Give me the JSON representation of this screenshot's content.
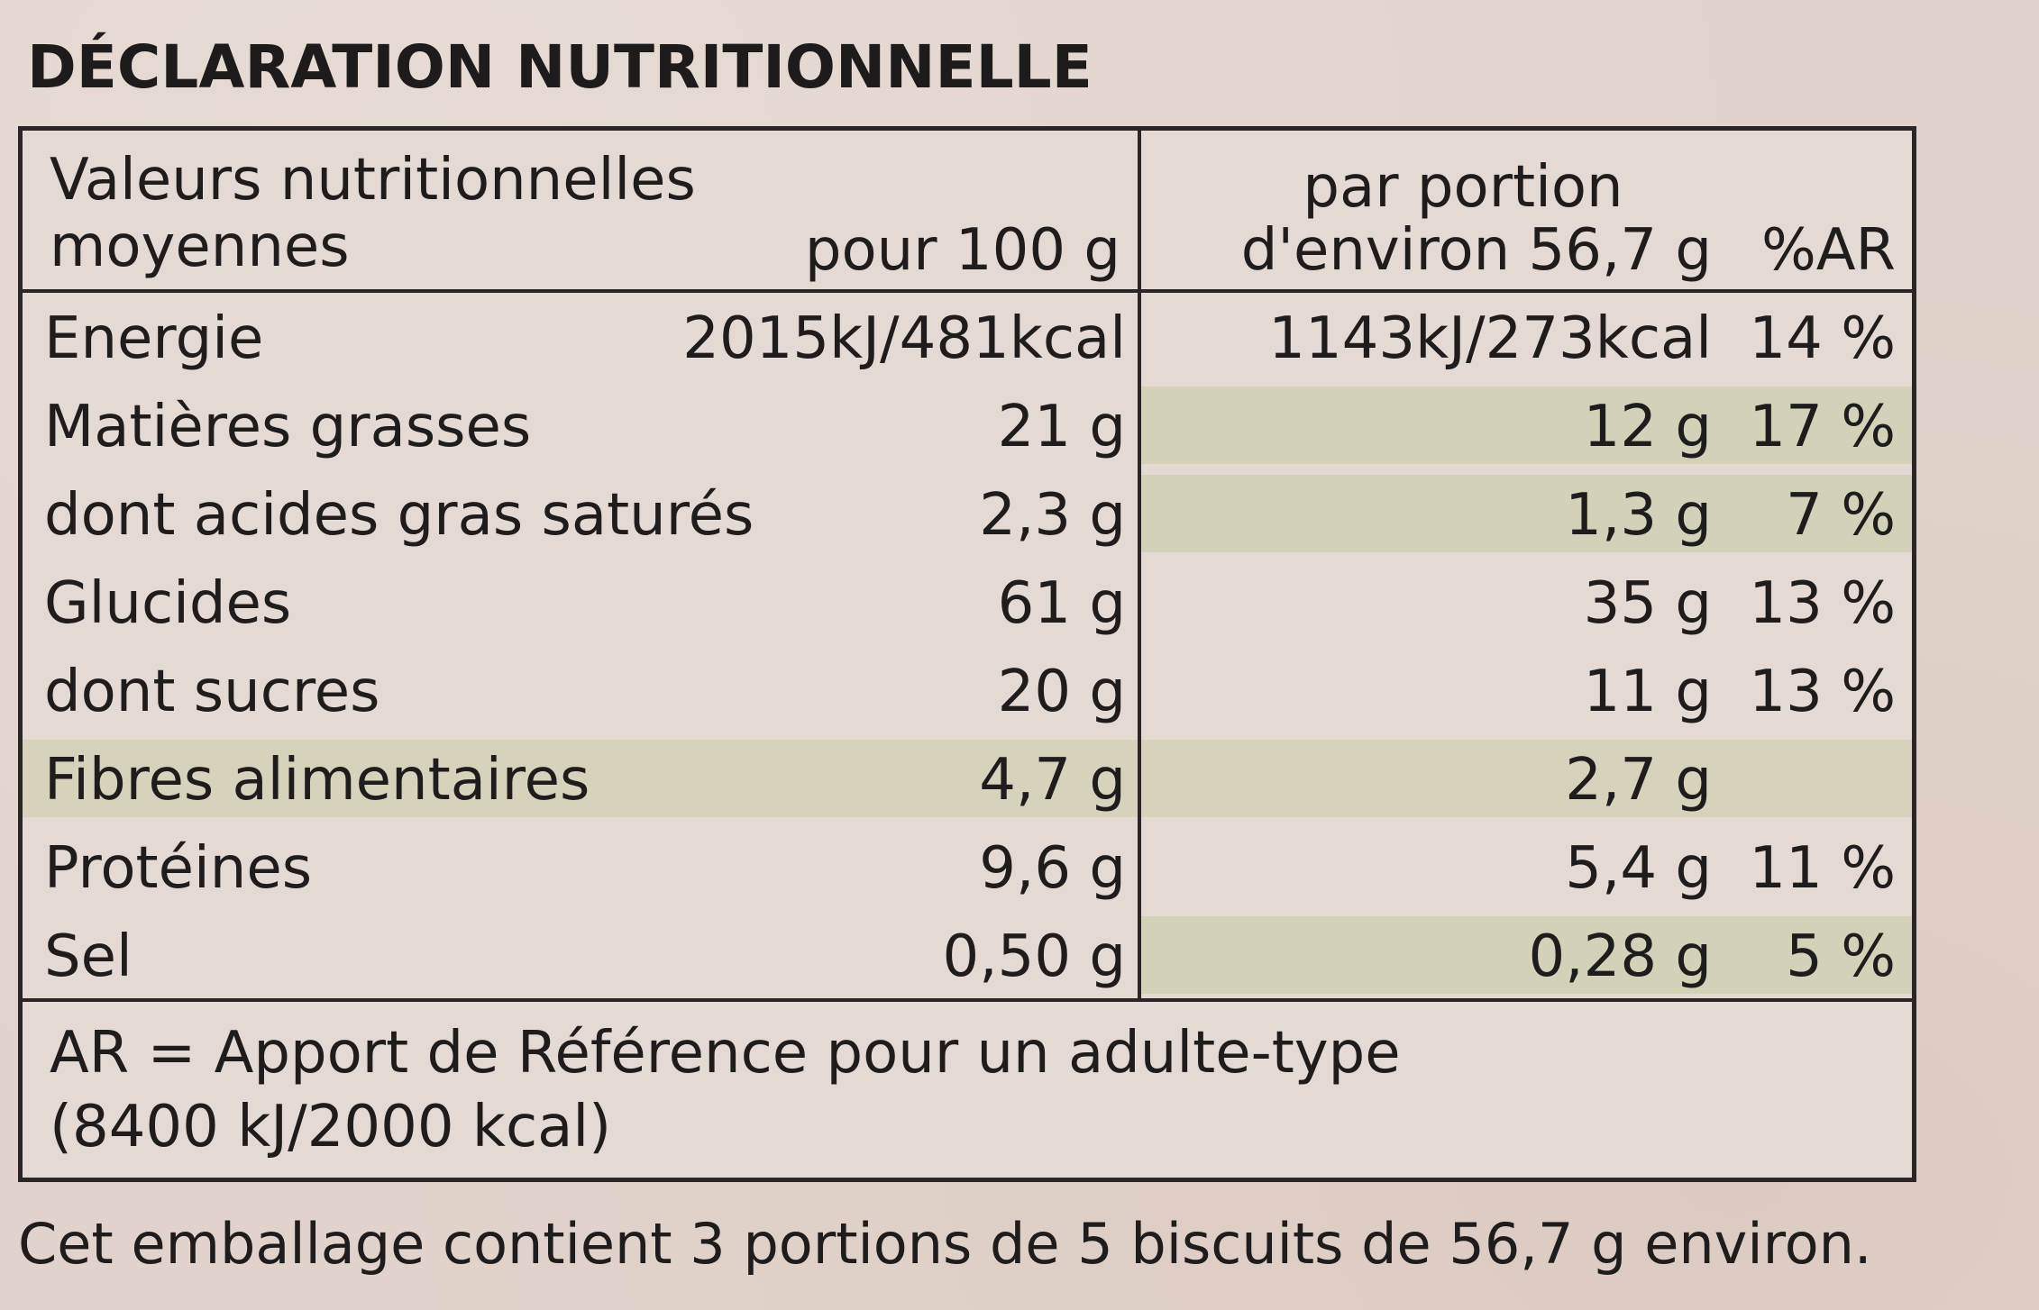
{
  "title": "DÉCLARATION NUTRITIONNELLE",
  "header": {
    "left_line1": "Valeurs nutritionnelles",
    "left_line2": "moyennes",
    "per100": "pour 100 g",
    "portion_line1": "par portion",
    "portion_line2": "d'environ 56,7 g",
    "ar": "%AR"
  },
  "rows": [
    {
      "nutrient": "Energie",
      "per100": "2015kJ/481kcal",
      "portion": "1143kJ/273kcal",
      "ar": "14 %",
      "tint": "none"
    },
    {
      "nutrient": "Matières grasses",
      "per100": "21 g",
      "portion": "12 g",
      "ar": "17 %",
      "tint": "right"
    },
    {
      "nutrient": "dont acides gras saturés",
      "per100": "2,3 g",
      "portion": "1,3 g",
      "ar": "7 %",
      "tint": "right"
    },
    {
      "nutrient": "Glucides",
      "per100": "61 g",
      "portion": "35 g",
      "ar": "13 %",
      "tint": "none"
    },
    {
      "nutrient": "dont sucres",
      "per100": "20 g",
      "portion": "11 g",
      "ar": "13 %",
      "tint": "none"
    },
    {
      "nutrient": "Fibres alimentaires",
      "per100": "4,7 g",
      "portion": "2,7 g",
      "ar": "",
      "tint": "full"
    },
    {
      "nutrient": "Protéines",
      "per100": "9,6 g",
      "portion": "5,4 g",
      "ar": "11 %",
      "tint": "none"
    },
    {
      "nutrient": "Sel",
      "per100": "0,50 g",
      "portion": "0,28 g",
      "ar": "5 %",
      "tint": "right"
    }
  ],
  "footer": {
    "line1": "AR = Apport de Référence pour un adulte-type",
    "line2": "(8400 kJ/2000 kcal)"
  },
  "note": "Cet emballage contient 3 portions de 5 biscuits de 56,7 g environ.",
  "colors": {
    "background": "#e1d3cb",
    "tint_band": "#d3d2b8",
    "border": "#2a2627",
    "text": "#1f1c1d"
  }
}
